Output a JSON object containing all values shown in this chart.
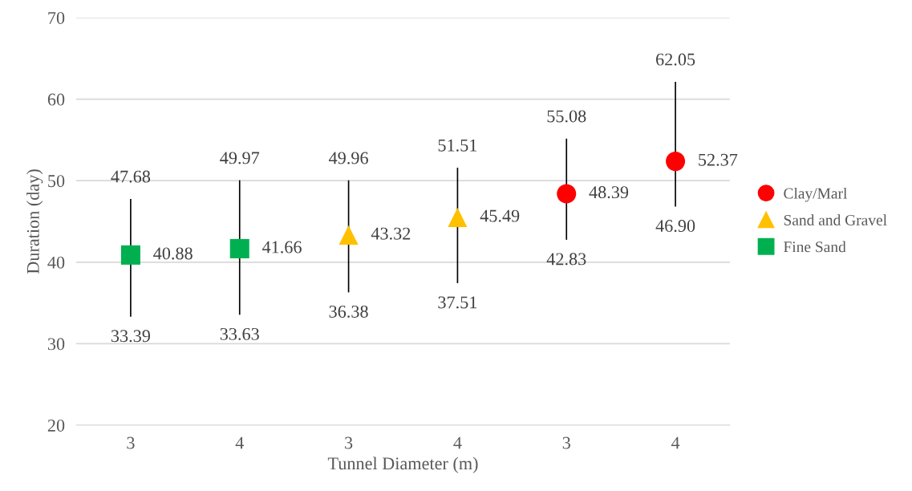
{
  "chart_data": {
    "type": "scatter",
    "xlabel": "Tunnel Diameter (m)",
    "ylabel": "Duration (day)",
    "categories": [
      "3",
      "4",
      "3",
      "4",
      "3",
      "4"
    ],
    "series": [
      {
        "name": "Clay/Marl",
        "color": "#ff0000",
        "marker": "circle",
        "values": [
          null,
          null,
          null,
          null,
          48.39,
          52.37
        ],
        "errors": [
          null,
          null,
          null,
          null,
          [
            42.83,
            55.08
          ],
          [
            46.9,
            62.05
          ]
        ]
      },
      {
        "name": "Sand and Gravel",
        "color": "#ffc000",
        "marker": "triangle",
        "values": [
          null,
          null,
          43.32,
          45.49,
          null,
          null
        ],
        "errors": [
          null,
          null,
          [
            36.38,
            49.96
          ],
          [
            37.51,
            51.51
          ],
          null,
          null
        ]
      },
      {
        "name": "Fine Sand",
        "color": "#00b050",
        "marker": "square",
        "values": [
          40.88,
          41.66,
          null,
          null,
          null,
          null
        ],
        "errors": [
          [
            33.39,
            47.68
          ],
          [
            33.63,
            49.97
          ],
          null,
          null,
          null,
          null
        ]
      }
    ],
    "annotations": [
      "47.68",
      "33.39",
      "49.97",
      "33.63",
      "49.96",
      "36.38",
      "51.51",
      "37.51",
      "55.08",
      "42.83",
      "62.05",
      "46.90"
    ],
    "ylim": [
      20,
      70
    ],
    "yticks": [
      20,
      30,
      40,
      50,
      60,
      70
    ],
    "grid": "y",
    "legend": "right",
    "data_labels": true
  }
}
